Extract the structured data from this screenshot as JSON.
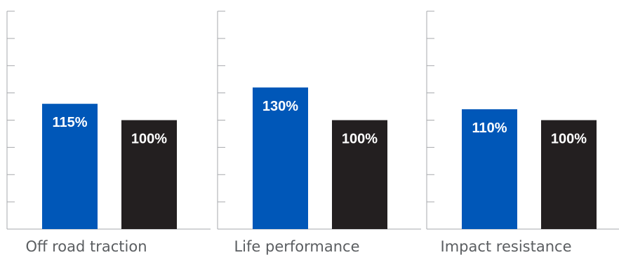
{
  "chart_data": [
    {
      "type": "bar",
      "categories": [
        "Off road traction"
      ],
      "series": [
        {
          "values": [
            115
          ],
          "labels": [
            "115%"
          ],
          "color": "#0057b8"
        },
        {
          "values": [
            100
          ],
          "labels": [
            "100%"
          ],
          "color": "#231f20"
        }
      ],
      "ylim": [
        0,
        200
      ],
      "y_tick_step": 25,
      "tick_labels_shown": false,
      "grid": false
    },
    {
      "type": "bar",
      "categories": [
        "Life performance"
      ],
      "series": [
        {
          "values": [
            130
          ],
          "labels": [
            "130%"
          ],
          "color": "#0057b8"
        },
        {
          "values": [
            100
          ],
          "labels": [
            "100%"
          ],
          "color": "#231f20"
        }
      ],
      "ylim": [
        0,
        200
      ],
      "y_tick_step": 25,
      "tick_labels_shown": false,
      "grid": false
    },
    {
      "type": "bar",
      "categories": [
        "Impact resistance"
      ],
      "series": [
        {
          "values": [
            110
          ],
          "labels": [
            "110%"
          ],
          "color": "#0057b8"
        },
        {
          "values": [
            100
          ],
          "labels": [
            "100%"
          ],
          "color": "#231f20"
        }
      ],
      "ylim": [
        0,
        200
      ],
      "y_tick_step": 25,
      "tick_labels_shown": false,
      "grid": false
    }
  ],
  "axis_color": "#a7a9ac"
}
